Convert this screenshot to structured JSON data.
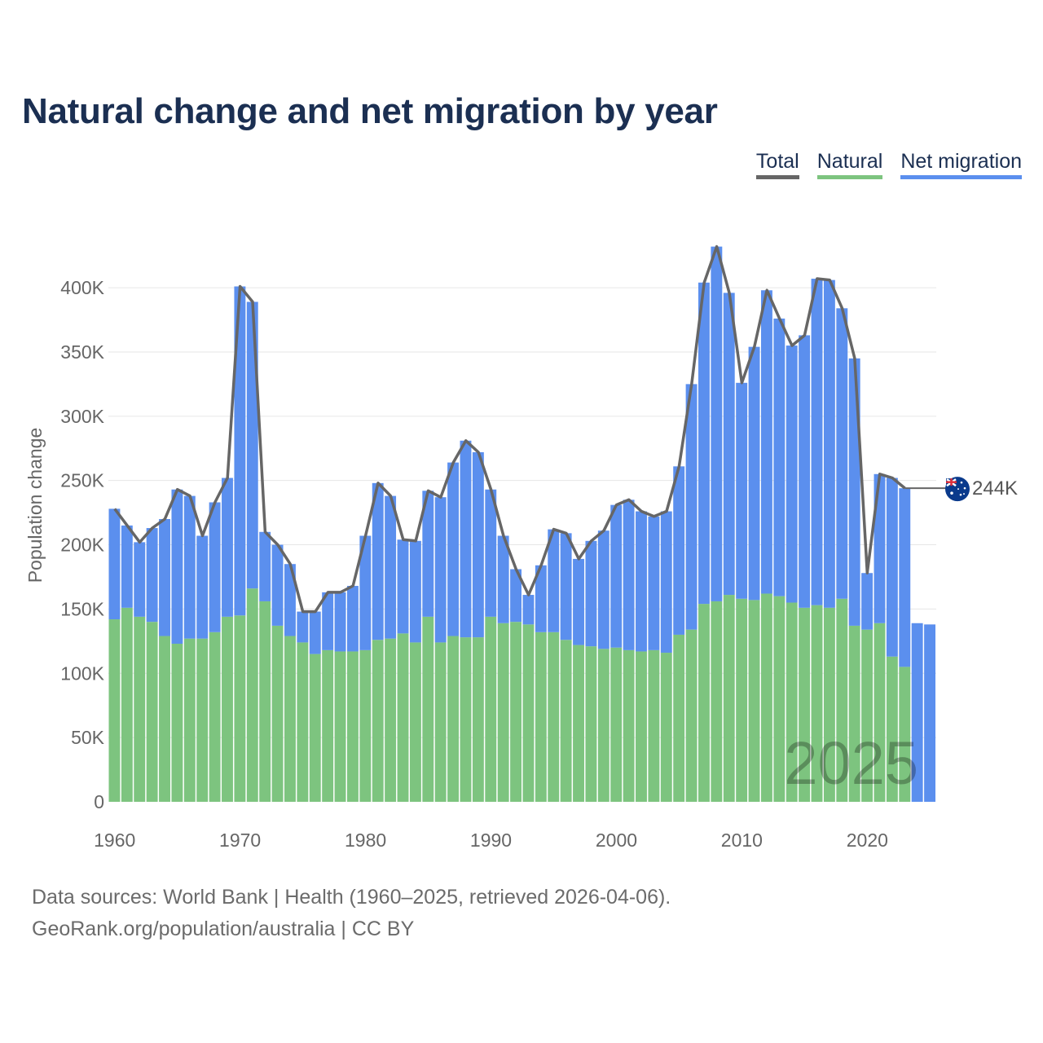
{
  "title": "Natural change and net migration by year",
  "legend": {
    "total": "Total",
    "natural": "Natural",
    "migration": "Net migration"
  },
  "footer": {
    "sources": "Data sources: World Bank | Health (1960–2025, retrieved 2026-04-06).",
    "site": "GeoRank.org/population/australia | CC BY"
  },
  "colors": {
    "natural": "#7dc47f",
    "migration": "#5b8fee",
    "total": "#666666",
    "title": "#1b2f52"
  },
  "chart_data": {
    "type": "bar",
    "stacked": true,
    "title": "Natural change and net migration by year",
    "ylabel": "Population change",
    "xlabel": "",
    "ylim": [
      0,
      440000
    ],
    "yticks": [
      0,
      50000,
      100000,
      150000,
      200000,
      250000,
      300000,
      350000,
      400000
    ],
    "ytick_labels": [
      "0",
      "50K",
      "100K",
      "150K",
      "200K",
      "250K",
      "300K",
      "350K",
      "400K"
    ],
    "xticks": [
      1960,
      1970,
      1980,
      1990,
      2000,
      2010,
      2020
    ],
    "xtick_labels": [
      "1960",
      "1970",
      "1980",
      "1990",
      "2000",
      "2010",
      "2020"
    ],
    "years": [
      1960,
      1961,
      1962,
      1963,
      1964,
      1965,
      1966,
      1967,
      1968,
      1969,
      1970,
      1971,
      1972,
      1973,
      1974,
      1975,
      1976,
      1977,
      1978,
      1979,
      1980,
      1981,
      1982,
      1983,
      1984,
      1985,
      1986,
      1987,
      1988,
      1989,
      1990,
      1991,
      1992,
      1993,
      1994,
      1995,
      1996,
      1997,
      1998,
      1999,
      2000,
      2001,
      2002,
      2003,
      2004,
      2005,
      2006,
      2007,
      2008,
      2009,
      2010,
      2011,
      2012,
      2013,
      2014,
      2015,
      2016,
      2017,
      2018,
      2019,
      2020,
      2021,
      2022,
      2023,
      2024,
      2025
    ],
    "series": [
      {
        "name": "Natural",
        "values": [
          142000,
          151000,
          144000,
          140000,
          129000,
          123000,
          127000,
          127000,
          132000,
          144000,
          145000,
          166000,
          156000,
          137000,
          129000,
          124000,
          115000,
          118000,
          117000,
          117000,
          118000,
          126000,
          127000,
          131000,
          124000,
          144000,
          124000,
          129000,
          128000,
          128000,
          144000,
          139000,
          140000,
          138000,
          132000,
          132000,
          126000,
          122000,
          121000,
          119000,
          120000,
          118000,
          117000,
          118000,
          116000,
          130000,
          134000,
          154000,
          156000,
          161000,
          158000,
          157000,
          162000,
          160000,
          155000,
          151000,
          153000,
          151000,
          158000,
          137000,
          134000,
          139000,
          113000,
          105000,
          null,
          null
        ]
      },
      {
        "name": "Net migration",
        "values": [
          86000,
          64000,
          58000,
          73000,
          91000,
          120000,
          111000,
          80000,
          101000,
          108000,
          256000,
          223000,
          54000,
          63000,
          56000,
          24000,
          33000,
          45000,
          46000,
          51000,
          89000,
          122000,
          111000,
          73000,
          79000,
          98000,
          113000,
          135000,
          153000,
          144000,
          99000,
          68000,
          41000,
          23000,
          52000,
          80000,
          83000,
          67000,
          82000,
          92000,
          111000,
          117000,
          109000,
          104000,
          110000,
          131000,
          191000,
          250000,
          276000,
          235000,
          168000,
          197000,
          236000,
          216000,
          200000,
          212000,
          254000,
          255000,
          226000,
          208000,
          44000,
          116000,
          139000,
          139000,
          139000,
          138000
        ]
      },
      {
        "name": "Total",
        "values": [
          228000,
          215000,
          202000,
          213000,
          220000,
          243000,
          238000,
          207000,
          233000,
          252000,
          401000,
          389000,
          210000,
          200000,
          185000,
          148000,
          148000,
          163000,
          163000,
          168000,
          207000,
          248000,
          238000,
          204000,
          203000,
          242000,
          237000,
          264000,
          281000,
          272000,
          243000,
          207000,
          181000,
          161000,
          184000,
          212000,
          209000,
          189000,
          203000,
          211000,
          231000,
          235000,
          226000,
          222000,
          226000,
          261000,
          325000,
          404000,
          432000,
          396000,
          326000,
          354000,
          398000,
          376000,
          355000,
          363000,
          407000,
          406000,
          384000,
          345000,
          178000,
          255000,
          252000,
          244000,
          null,
          null
        ]
      }
    ],
    "end_label": {
      "country": "Australia",
      "value": 244000,
      "text": "244K"
    },
    "watermark_year": "2025"
  }
}
